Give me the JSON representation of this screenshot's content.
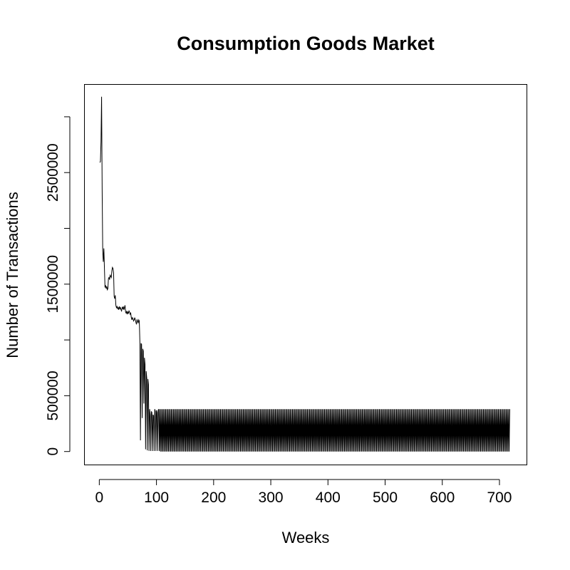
{
  "chart_data": {
    "type": "line",
    "title": "Consumption Goods Market",
    "xlabel": "Weeks",
    "ylabel": "Number of Transactions",
    "xlim": [
      -26,
      748
    ],
    "ylim": [
      -120000,
      3290000
    ],
    "x_ticks": [
      0,
      100,
      200,
      300,
      400,
      500,
      600,
      700
    ],
    "x_tick_labels": [
      "0",
      "100",
      "200",
      "300",
      "400",
      "500",
      "600",
      "700"
    ],
    "y_ticks": [
      0,
      500000,
      1000000,
      1500000,
      2000000,
      2500000,
      3000000
    ],
    "y_tick_labels": [
      "0",
      "500000",
      "",
      "1500000",
      "",
      "2500000",
      ""
    ],
    "grid": false,
    "legend": "none",
    "series": [
      {
        "color": "#000000",
        "early_points": [
          [
            1,
            2590000
          ],
          [
            2,
            2600000
          ],
          [
            3,
            2780000
          ],
          [
            4,
            3180000
          ],
          [
            5,
            2350000
          ],
          [
            6,
            1800000
          ],
          [
            7,
            1700000
          ],
          [
            8,
            1820000
          ],
          [
            9,
            1640000
          ],
          [
            10,
            1470000
          ],
          [
            11,
            1490000
          ],
          [
            12,
            1460000
          ],
          [
            13,
            1480000
          ],
          [
            14,
            1450000
          ],
          [
            15,
            1460000
          ],
          [
            16,
            1550000
          ],
          [
            17,
            1560000
          ],
          [
            18,
            1540000
          ],
          [
            19,
            1580000
          ],
          [
            20,
            1570000
          ],
          [
            21,
            1560000
          ],
          [
            22,
            1620000
          ],
          [
            23,
            1650000
          ],
          [
            24,
            1640000
          ],
          [
            25,
            1600000
          ],
          [
            26,
            1390000
          ],
          [
            27,
            1370000
          ],
          [
            28,
            1400000
          ],
          [
            29,
            1310000
          ],
          [
            30,
            1290000
          ],
          [
            31,
            1300000
          ],
          [
            32,
            1280000
          ],
          [
            33,
            1290000
          ],
          [
            34,
            1270000
          ],
          [
            35,
            1300000
          ],
          [
            36,
            1280000
          ],
          [
            37,
            1290000
          ],
          [
            38,
            1270000
          ],
          [
            39,
            1260000
          ],
          [
            40,
            1290000
          ],
          [
            41,
            1280000
          ],
          [
            42,
            1300000
          ],
          [
            43,
            1270000
          ],
          [
            44,
            1290000
          ],
          [
            45,
            1310000
          ],
          [
            46,
            1250000
          ],
          [
            47,
            1240000
          ],
          [
            48,
            1260000
          ],
          [
            49,
            1230000
          ],
          [
            50,
            1250000
          ],
          [
            51,
            1240000
          ],
          [
            52,
            1260000
          ],
          [
            53,
            1250000
          ],
          [
            54,
            1230000
          ],
          [
            55,
            1240000
          ],
          [
            56,
            1200000
          ],
          [
            57,
            1180000
          ],
          [
            58,
            1200000
          ],
          [
            59,
            1190000
          ],
          [
            60,
            1170000
          ],
          [
            61,
            1180000
          ],
          [
            62,
            1200000
          ],
          [
            63,
            1180000
          ],
          [
            64,
            1160000
          ],
          [
            65,
            1140000
          ],
          [
            66,
            1180000
          ],
          [
            67,
            1170000
          ],
          [
            68,
            1150000
          ],
          [
            69,
            1180000
          ],
          [
            70,
            1170000
          ],
          [
            71,
            980000
          ],
          [
            72,
            100000
          ],
          [
            73,
            970000
          ],
          [
            74,
            960000
          ],
          [
            75,
            300000
          ],
          [
            76,
            920000
          ],
          [
            77,
            900000
          ],
          [
            78,
            430000
          ],
          [
            79,
            840000
          ],
          [
            80,
            780000
          ],
          [
            81,
            20000
          ],
          [
            82,
            720000
          ],
          [
            83,
            660000
          ],
          [
            84,
            10000
          ],
          [
            85,
            650000
          ],
          [
            86,
            600000
          ],
          [
            87,
            5000
          ],
          [
            88,
            380000
          ],
          [
            89,
            330000
          ],
          [
            90,
            5000
          ],
          [
            91,
            360000
          ],
          [
            92,
            350000
          ],
          [
            93,
            5000
          ],
          [
            94,
            330000
          ],
          [
            95,
            320000
          ],
          [
            96,
            5000
          ],
          [
            97,
            380000
          ],
          [
            98,
            360000
          ],
          [
            99,
            5000
          ],
          [
            100,
            370000
          ],
          [
            101,
            350000
          ],
          [
            102,
            5000
          ],
          [
            103,
            370000
          ],
          [
            104,
            380000
          ],
          [
            105,
            5000
          ]
        ],
        "periodic_cycle": [
          380000,
          0
        ],
        "periodic_from": 106,
        "periodic_to": 718
      }
    ]
  }
}
